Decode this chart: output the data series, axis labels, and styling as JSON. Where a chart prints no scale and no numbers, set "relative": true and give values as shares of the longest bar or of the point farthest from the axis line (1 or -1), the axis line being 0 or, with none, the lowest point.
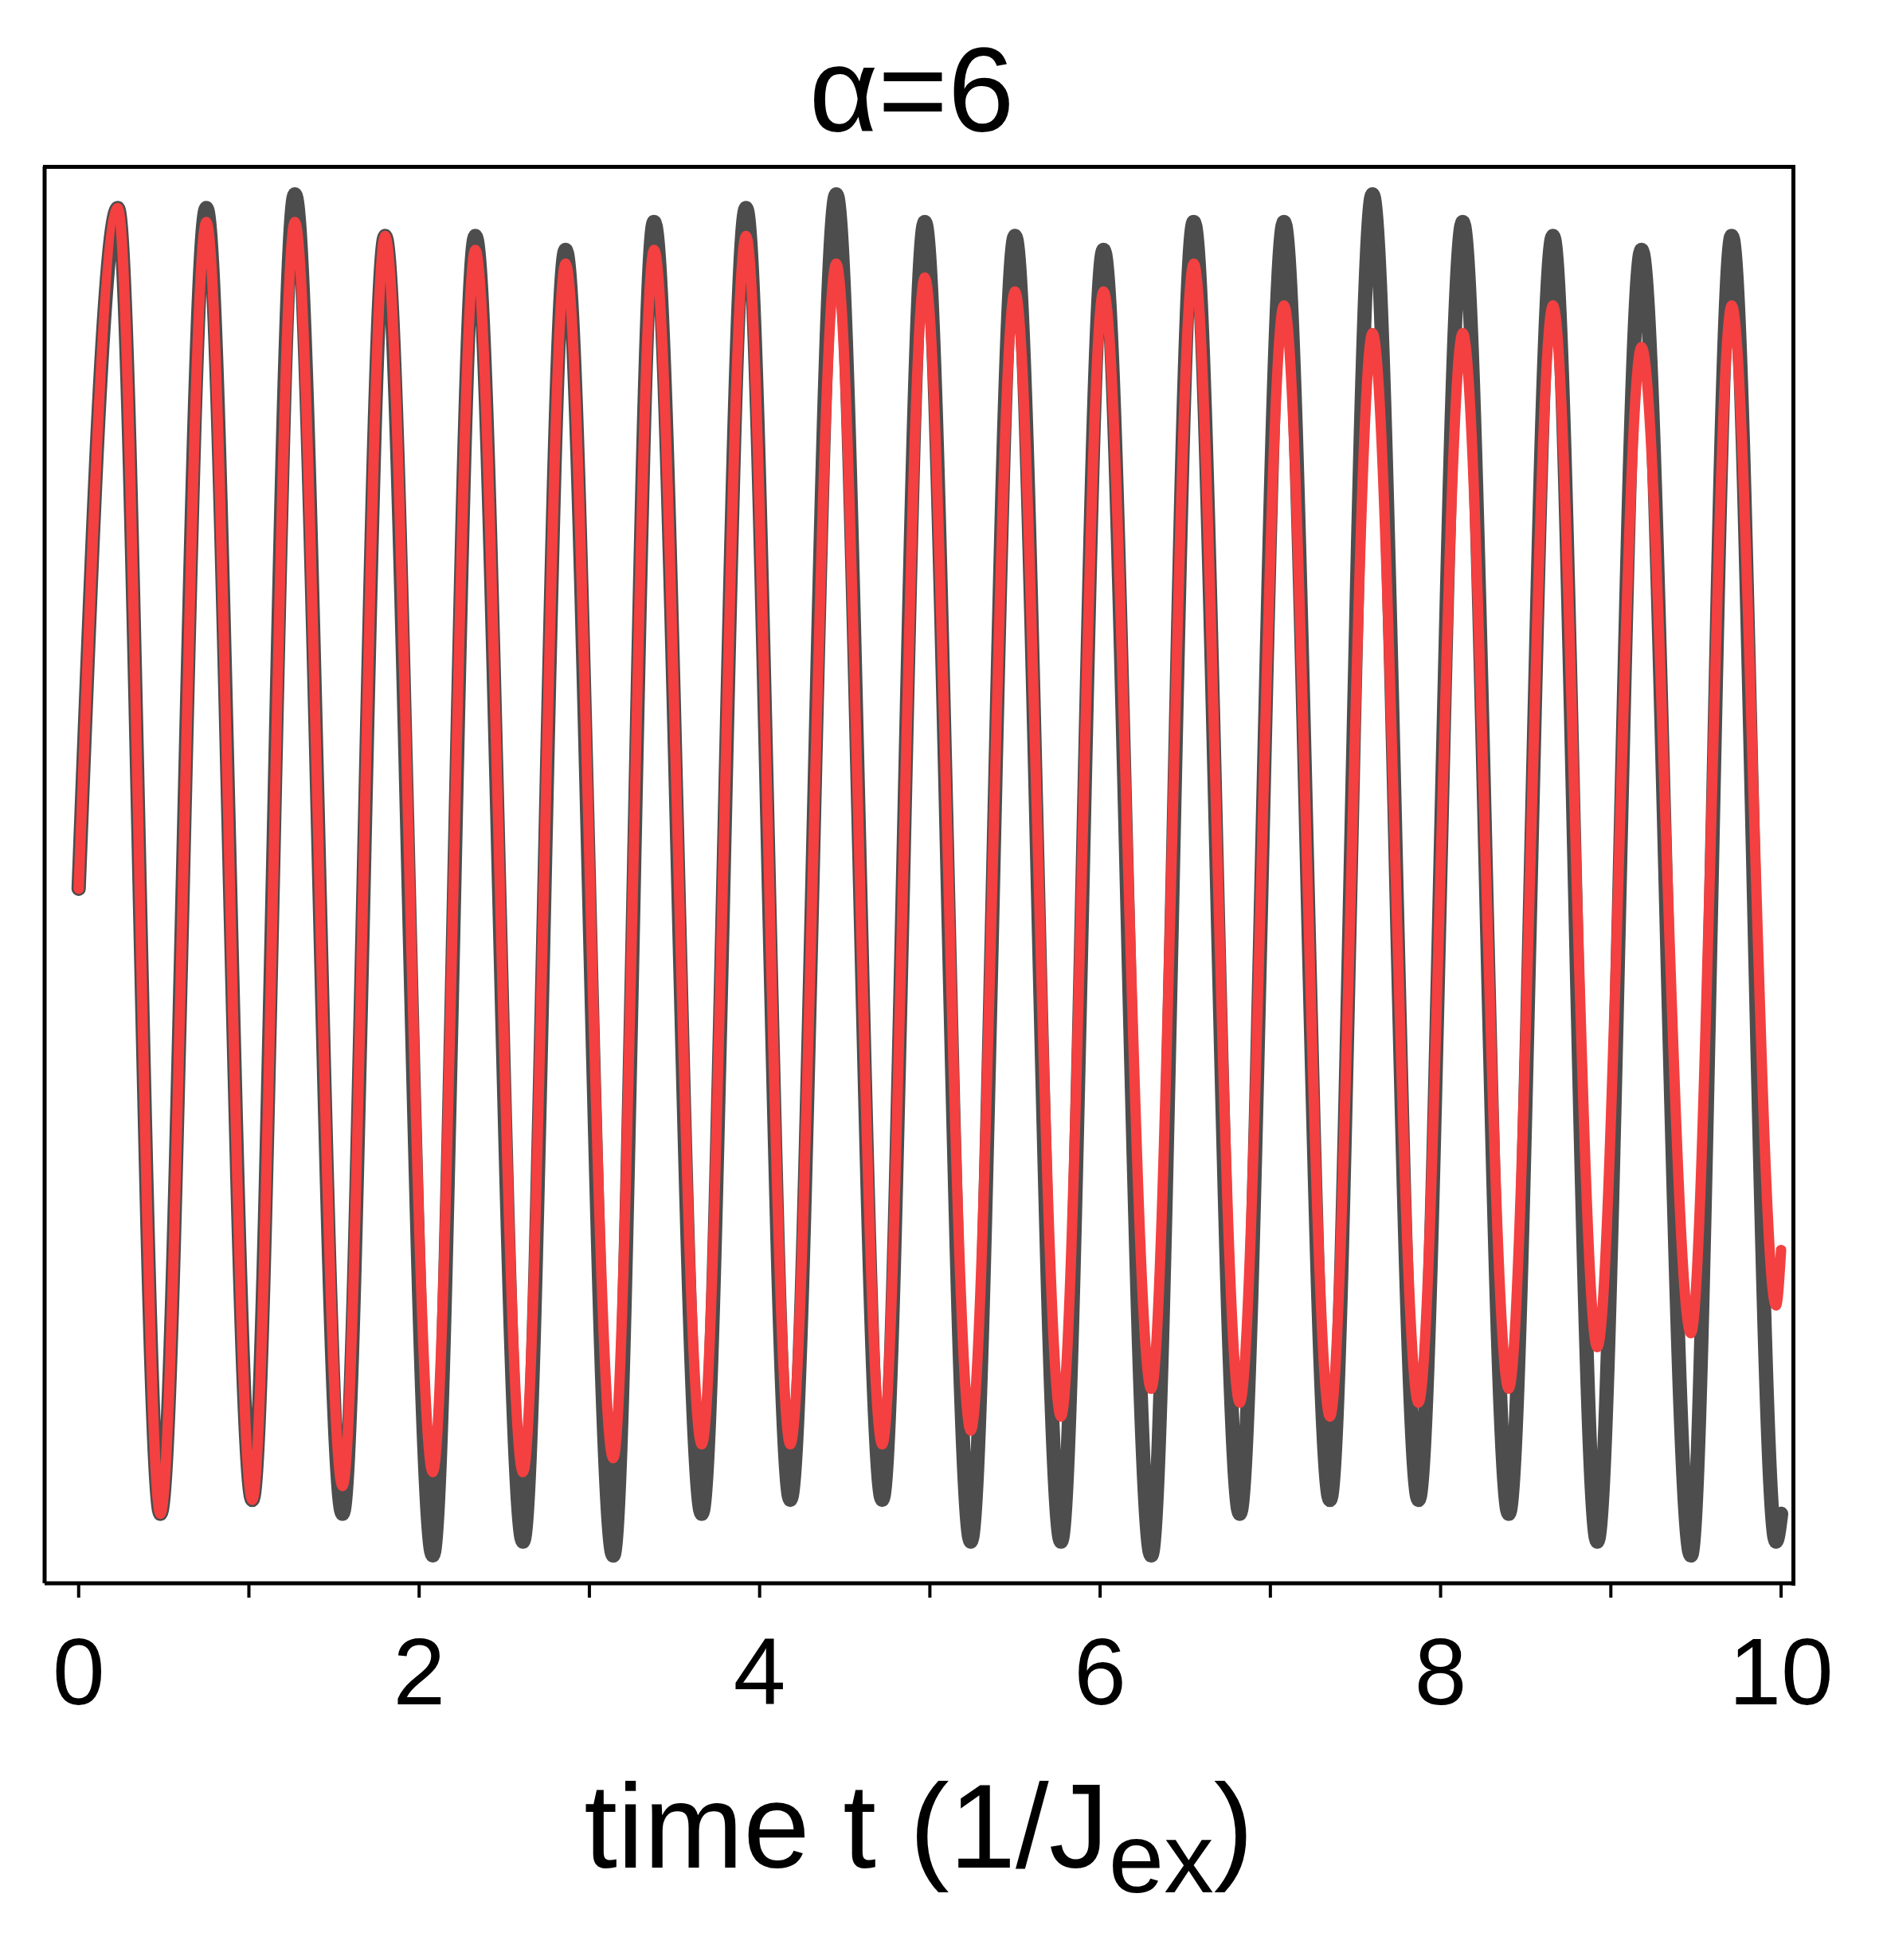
{
  "chart_data": {
    "type": "line",
    "title": "α=6",
    "xlabel": "time t (1/J$_{ex}$)",
    "relative": true,
    "marker": "none",
    "line_style": "solid",
    "tick_labels": "x",
    "x": [
      0,
      0.23,
      0.48,
      0.75,
      1.02,
      1.27,
      1.55,
      1.8,
      2.08,
      2.33,
      2.61,
      2.86,
      3.14,
      3.38,
      3.66,
      3.92,
      4.18,
      4.45,
      4.72,
      4.97,
      5.24,
      5.5,
      5.77,
      6.02,
      6.3,
      6.55,
      6.82,
      7.08,
      7.35,
      7.6,
      7.87,
      8.13,
      8.4,
      8.66,
      8.92,
      9.18,
      9.47,
      9.71,
      9.97,
      10
    ],
    "xlim": [
      -0.2,
      10.07
    ],
    "xticks": [
      0,
      {
        "value": 1,
        "label": null
      },
      2,
      {
        "value": 3,
        "label": null
      },
      4,
      {
        "value": 5,
        "label": null
      },
      6,
      {
        "value": 7,
        "label": null
      },
      8,
      {
        "value": 9,
        "label": null
      },
      10
    ],
    "series": [
      {
        "color": "#4d4d4d",
        "values": [
          0.5,
          0.99,
          0.05,
          0.99,
          0.06,
          1.0,
          0.05,
          0.97,
          0.02,
          0.97,
          0.03,
          0.96,
          0.02,
          0.98,
          0.05,
          0.99,
          0.06,
          1.0,
          0.06,
          0.98,
          0.03,
          0.97,
          0.03,
          0.96,
          0.02,
          0.98,
          0.05,
          0.98,
          0.06,
          1.0,
          0.06,
          0.98,
          0.05,
          0.97,
          0.03,
          0.96,
          0.02,
          0.97,
          0.03,
          0.05
        ]
      },
      {
        "color": "#f44040",
        "values": [
          0.5,
          0.99,
          0.05,
          0.98,
          0.06,
          0.98,
          0.07,
          0.97,
          0.08,
          0.96,
          0.08,
          0.95,
          0.09,
          0.96,
          0.1,
          0.97,
          0.1,
          0.95,
          0.1,
          0.94,
          0.11,
          0.93,
          0.12,
          0.93,
          0.14,
          0.95,
          0.13,
          0.92,
          0.12,
          0.9,
          0.13,
          0.9,
          0.14,
          0.92,
          0.17,
          0.89,
          0.18,
          0.92,
          0.2,
          0.24
        ]
      }
    ]
  }
}
